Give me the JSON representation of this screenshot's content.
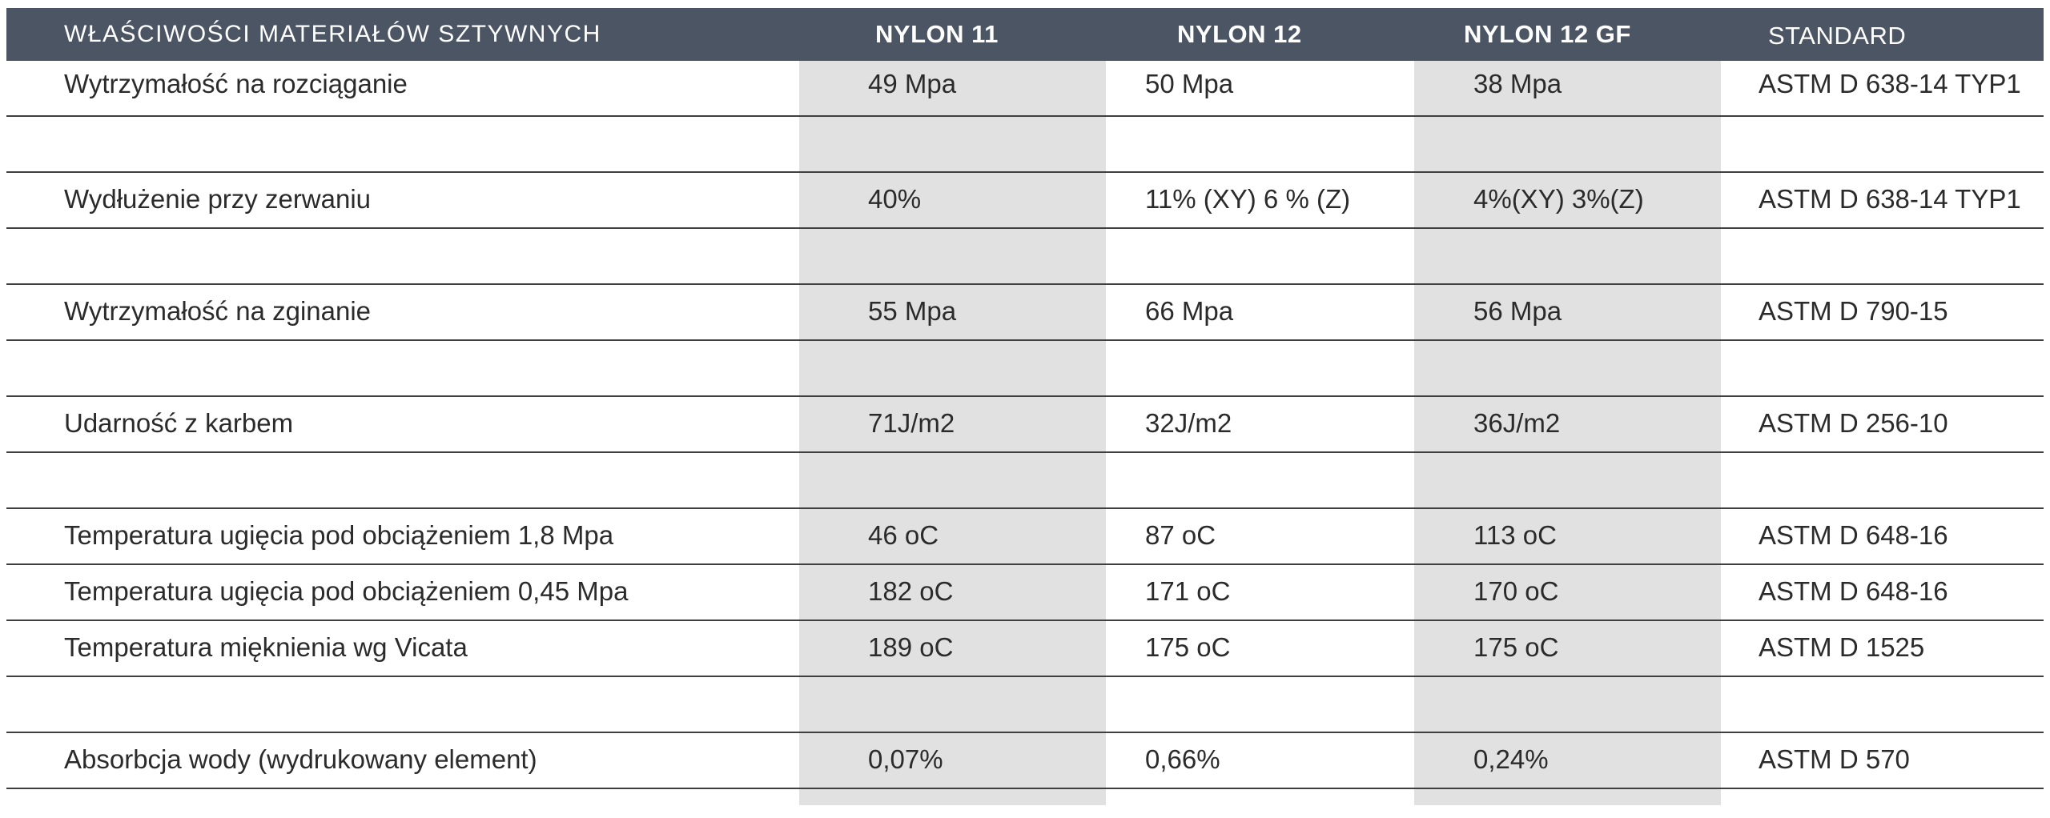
{
  "header": {
    "property": "WŁAŚCIWOŚCI  MATERIAŁÓW  SZTYWNYCH",
    "col1": "NYLON 11",
    "col2": "NYLON 12",
    "col3": "NYLON 12 GF",
    "standard": "STANDARD"
  },
  "rows": [
    {
      "property": "Wytrzymałość na rozciąganie",
      "v1": "49 Mpa",
      "v2": "50 Mpa",
      "v3": "38 Mpa",
      "standard": "ASTM D 638-14 TYP1"
    },
    {
      "property": "",
      "v1": "",
      "v2": "",
      "v3": "",
      "standard": ""
    },
    {
      "property": "Wydłużenie przy zerwaniu",
      "v1": "40%",
      "v2": "11% (XY)  6 % (Z)",
      "v3": "4%(XY)  3%(Z)",
      "standard": "ASTM D 638-14 TYP1"
    },
    {
      "property": "",
      "v1": "",
      "v2": "",
      "v3": "",
      "standard": ""
    },
    {
      "property": "Wytrzymałość na zginanie",
      "v1": "55 Mpa",
      "v2": "66 Mpa",
      "v3": "56 Mpa",
      "standard": "ASTM D 790-15"
    },
    {
      "property": "",
      "v1": "",
      "v2": "",
      "v3": "",
      "standard": ""
    },
    {
      "property": "Udarność z karbem",
      "v1": "71J/m2",
      "v2": "32J/m2",
      "v3": "36J/m2",
      "standard": "ASTM D 256-10"
    },
    {
      "property": "",
      "v1": "",
      "v2": "",
      "v3": "",
      "standard": ""
    },
    {
      "property": "Temperatura ugięcia pod obciążeniem   1,8 Mpa",
      "v1": "46 oC",
      "v2": "87 oC",
      "v3": "113 oC",
      "standard": "ASTM D 648-16"
    },
    {
      "property": "Temperatura ugięcia pod obciążeniem   0,45 Mpa",
      "v1": "182 oC",
      "v2": "171 oC",
      "v3": "170 oC",
      "standard": "ASTM D 648-16"
    },
    {
      "property": "Temperatura mięknienia wg Vicata",
      "v1": "189 oC",
      "v2": "175 oC",
      "v3": "175 oC",
      "standard": "ASTM D 1525"
    },
    {
      "property": "",
      "v1": "",
      "v2": "",
      "v3": "",
      "standard": ""
    },
    {
      "property": "Absorbcja wody (wydrukowany element)",
      "v1": "0,07%",
      "v2": "0,66%",
      "v3": "0,24%",
      "standard": "ASTM D 570"
    }
  ]
}
